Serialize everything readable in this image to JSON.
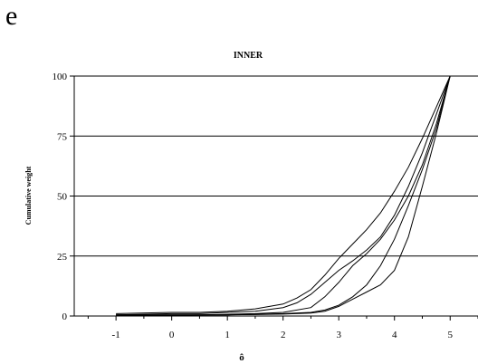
{
  "panel_letter": "e",
  "chart_data": {
    "type": "line",
    "title": "INNER",
    "xlabel": "ô",
    "ylabel": "Cumulative weight",
    "xlim": [
      -1.75,
      5.5
    ],
    "ylim": [
      0,
      100
    ],
    "x_ticks": [
      "-1",
      "0",
      "1",
      "2",
      "3",
      "4",
      "5"
    ],
    "y_ticks": [
      "0",
      "25",
      "50",
      "75",
      "100"
    ],
    "grid": "horizontal",
    "legend": "none",
    "line_color": "#000000",
    "series": [
      {
        "x": [
          -1,
          0,
          0.5,
          1,
          1.5,
          2,
          2.25,
          2.5,
          2.75,
          3,
          3.25,
          3.5,
          3.75,
          4,
          4.25,
          4.5,
          4.75,
          5
        ],
        "values": [
          1,
          1.5,
          1.5,
          2,
          3,
          5,
          7.5,
          11,
          17,
          24,
          30,
          36,
          43,
          52,
          62,
          74,
          87,
          100
        ]
      },
      {
        "x": [
          -1,
          0,
          0.5,
          1,
          1.5,
          2,
          2.25,
          2.5,
          2.75,
          3,
          3.25,
          3.5,
          3.75,
          4,
          4.25,
          4.5,
          4.75,
          5
        ],
        "values": [
          0.5,
          1,
          1,
          1.5,
          2,
          3.5,
          5.5,
          9,
          14,
          19,
          23,
          27.5,
          33,
          42,
          54,
          68,
          84,
          100
        ]
      },
      {
        "x": [
          -1,
          0,
          0.5,
          1,
          1.5,
          2,
          2.5,
          2.75,
          3,
          3.25,
          3.5,
          3.75,
          4,
          4.25,
          4.5,
          4.75,
          5
        ],
        "values": [
          0.5,
          0.5,
          0.5,
          0.7,
          1,
          1.5,
          3.5,
          8,
          14,
          21,
          26,
          32,
          40,
          50,
          63,
          80,
          100
        ]
      },
      {
        "x": [
          -1,
          0,
          0.5,
          1,
          1.5,
          2,
          2.5,
          2.75,
          3,
          3.25,
          3.5,
          3.75,
          4,
          4.25,
          4.5,
          4.75,
          5
        ],
        "values": [
          0.5,
          0.5,
          0.5,
          0.5,
          0.7,
          1,
          1.5,
          2.5,
          4.5,
          8,
          13,
          21,
          32,
          46,
          61,
          78,
          100
        ]
      },
      {
        "x": [
          -1,
          0,
          0.5,
          1,
          1.5,
          2,
          2.5,
          2.75,
          3,
          3.25,
          3.5,
          3.75,
          4,
          4.25,
          4.5,
          4.75,
          5
        ],
        "values": [
          0.3,
          0.3,
          0.4,
          0.5,
          0.6,
          0.8,
          1.2,
          2,
          4,
          7,
          10,
          13,
          19,
          33,
          54,
          76,
          100
        ]
      }
    ]
  }
}
